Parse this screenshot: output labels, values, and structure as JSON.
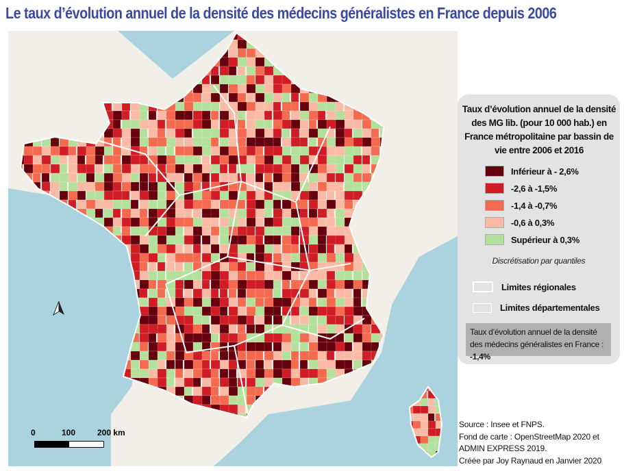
{
  "title": "Le taux d’évolution annuel de la densité des médecins généralistes en France depuis 2006",
  "legend": {
    "title": "Taux d’évolution annuel de la densité des MG lib. (pour 10 000 hab.) en France métropolitaine par bassin de vie entre 2006 et 2016",
    "classes": [
      {
        "label": "Inférieur à - 2,6%",
        "color": "#67000d"
      },
      {
        "label": "-2,6  à -1,5%",
        "color": "#d01c24"
      },
      {
        "label": "-1,4  à -0,7%",
        "color": "#f46a4f"
      },
      {
        "label": "-0,6  à 0,3%",
        "color": "#fbbaa5"
      },
      {
        "label": "Supérieur à 0,3%",
        "color": "#b3e09a"
      }
    ],
    "method": "Discrétisation par quantiles",
    "regional_limits": "Limites régionales",
    "departmental_limits": "Limites départementales",
    "average_text": "Taux d’évolution annuel de la densité des médecins généralistes en France : ",
    "average_value": "-1,4%"
  },
  "scale_bar": {
    "labels": [
      "0",
      "100",
      "200 km"
    ]
  },
  "source": [
    "Source : Insee et FNPS.",
    "Fond de carte : OpenStreetMap 2020 et",
    "ADMIN EXPRESS 2019.",
    "Créée par Joy Raynaud en Janvier 2020"
  ],
  "colors": {
    "sea": "#aad3df",
    "land": "#f2efe9",
    "title": "#3b4aa0"
  }
}
